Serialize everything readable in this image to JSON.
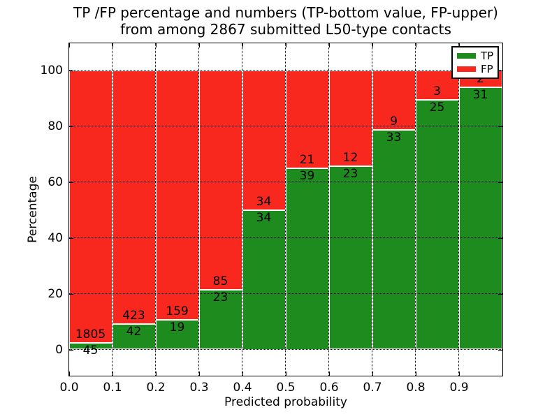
{
  "title": {
    "line1": "TP /FP percentage and numbers (TP-bottom value, FP-upper)",
    "line2": "from among 2867 submitted L50-type contacts"
  },
  "axes": {
    "xlabel": "Predicted probability",
    "ylabel": "Percentage",
    "x_tick_labels": [
      "0.0",
      "0.1",
      "0.2",
      "0.3",
      "0.4",
      "0.5",
      "0.6",
      "0.7",
      "0.8",
      "0.9"
    ],
    "y_tick_labels": [
      "0",
      "20",
      "40",
      "60",
      "80",
      "100"
    ]
  },
  "legend": {
    "items": [
      {
        "label": "TP",
        "color": "#1e8b1e"
      },
      {
        "label": "FP",
        "color": "#f8281e"
      }
    ],
    "position": "upper right"
  },
  "chart_data": {
    "type": "bar",
    "stacked": true,
    "normalized": "each bin scaled to 100%",
    "title": "TP /FP percentage and numbers (TP-bottom value, FP-upper) from among 2867 submitted L50-type contacts",
    "xlabel": "Predicted probability",
    "ylabel": "Percentage",
    "total_contacts": 2867,
    "bin_width": 0.1,
    "bin_starts": [
      0.0,
      0.1,
      0.2,
      0.3,
      0.4,
      0.5,
      0.6,
      0.7,
      0.8,
      0.9
    ],
    "series": [
      {
        "name": "TP",
        "color": "#1e8b1e",
        "counts": [
          45,
          42,
          19,
          23,
          34,
          39,
          23,
          33,
          25,
          31
        ]
      },
      {
        "name": "FP",
        "color": "#f8281e",
        "counts": [
          1805,
          423,
          159,
          85,
          34,
          21,
          12,
          9,
          3,
          2
        ]
      }
    ],
    "tp_percent_of_bin": [
      2.43,
      9.03,
      10.67,
      21.3,
      50.0,
      65.0,
      65.71,
      78.57,
      89.29,
      93.94
    ],
    "xlim": [
      0.0,
      1.0
    ],
    "ylim": [
      -10,
      110
    ],
    "x_ticks": [
      0.0,
      0.1,
      0.2,
      0.3,
      0.4,
      0.5,
      0.6,
      0.7,
      0.8,
      0.9
    ],
    "y_ticks": [
      0,
      20,
      40,
      60,
      80,
      100
    ],
    "grid": "dotted black, drawn above bars",
    "bar_edge_color": "#ffffff",
    "legend_position": "upper right"
  }
}
